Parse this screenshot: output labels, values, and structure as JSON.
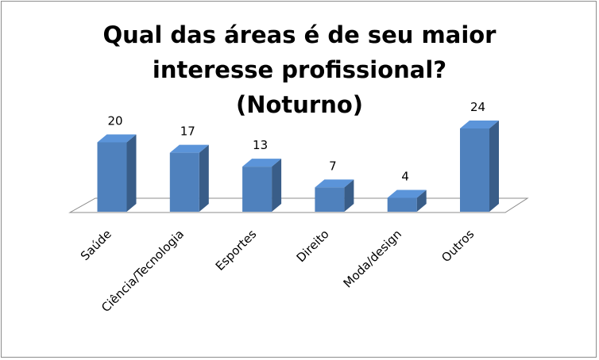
{
  "chart_data": {
    "type": "bar3d",
    "title": "Qual das áreas é de seu maior interesse profissional? (Noturno)",
    "categories": [
      "Saúde",
      "Ciência/Tecnologia",
      "Esportes",
      "Direito",
      "Moda/design",
      "Outros"
    ],
    "values": [
      20,
      17,
      13,
      7,
      4,
      24
    ],
    "color": "#4f81bd"
  }
}
